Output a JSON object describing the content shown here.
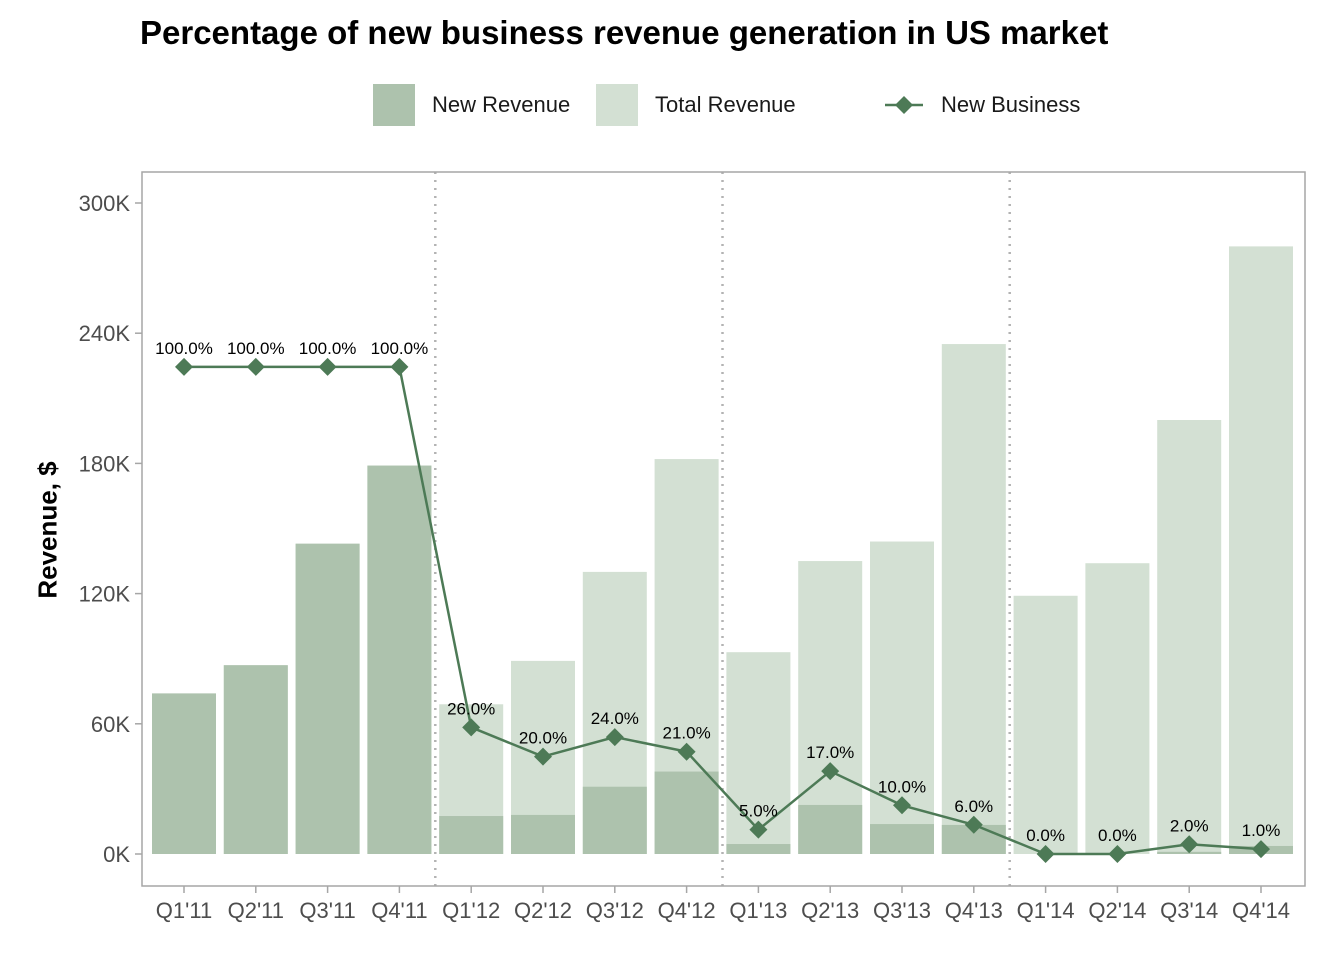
{
  "chart_data": {
    "type": "bar",
    "title": "Percentage of new business revenue generation in US market",
    "xlabel": "",
    "ylabel": "Revenue, $",
    "ylim": [
      -10000,
      312000
    ],
    "yticks": [
      0,
      60000,
      120000,
      180000,
      240000,
      300000
    ],
    "ytick_labels": [
      "0K",
      "60K",
      "120K",
      "180K",
      "240K",
      "300K"
    ],
    "grid": false,
    "legend_position": "top",
    "categories": [
      "Q1'11",
      "Q2'11",
      "Q3'11",
      "Q4'11",
      "Q1'12",
      "Q2'12",
      "Q3'12",
      "Q4'12",
      "Q1'13",
      "Q2'13",
      "Q3'13",
      "Q4'13",
      "Q1'14",
      "Q2'14",
      "Q3'14",
      "Q4'14"
    ],
    "year_separators_after": [
      "Q4'11",
      "Q4'12",
      "Q4'13"
    ],
    "series": [
      {
        "name": "Total Revenue",
        "type": "bar",
        "color": "#d3e0d3",
        "values": [
          74000,
          87000,
          143000,
          179000,
          69000,
          89000,
          130000,
          182000,
          93000,
          135000,
          144000,
          235000,
          119000,
          134000,
          200000,
          280000
        ]
      },
      {
        "name": "New Revenue",
        "type": "bar",
        "color": "#adc2ad",
        "values": [
          74000,
          87000,
          143000,
          179000,
          17500,
          18000,
          31000,
          38000,
          4600,
          22600,
          13800,
          13400,
          0,
          0,
          1000,
          3700
        ]
      },
      {
        "name": "New Business",
        "type": "line",
        "marker": "diamond",
        "color": "#4d7a56",
        "unit": "percent",
        "values": [
          100,
          100,
          100,
          100,
          26,
          20,
          24,
          21,
          5,
          17,
          10,
          6,
          0,
          0,
          2,
          1
        ],
        "labels": [
          "100.0%",
          "100.0%",
          "100.0%",
          "100.0%",
          "26.0%",
          "20.0%",
          "24.0%",
          "21.0%",
          "5.0%",
          "17.0%",
          "10.0%",
          "6.0%",
          "0.0%",
          "0.0%",
          "2.0%",
          "1.0%"
        ],
        "plotted_scale_revenue_per_percent": 2245
      }
    ],
    "legend": [
      {
        "name": "New Revenue",
        "kind": "swatch",
        "color": "#adc2ad"
      },
      {
        "name": "Total Revenue",
        "kind": "swatch",
        "color": "#d3e0d3"
      },
      {
        "name": "New Business",
        "kind": "line-diamond",
        "color": "#4d7a56"
      }
    ]
  },
  "colors": {
    "axis": "#a6a6a6",
    "tick_text": "#4d4d4d",
    "separator": "#b3b3b3",
    "label_text": "#000000"
  }
}
